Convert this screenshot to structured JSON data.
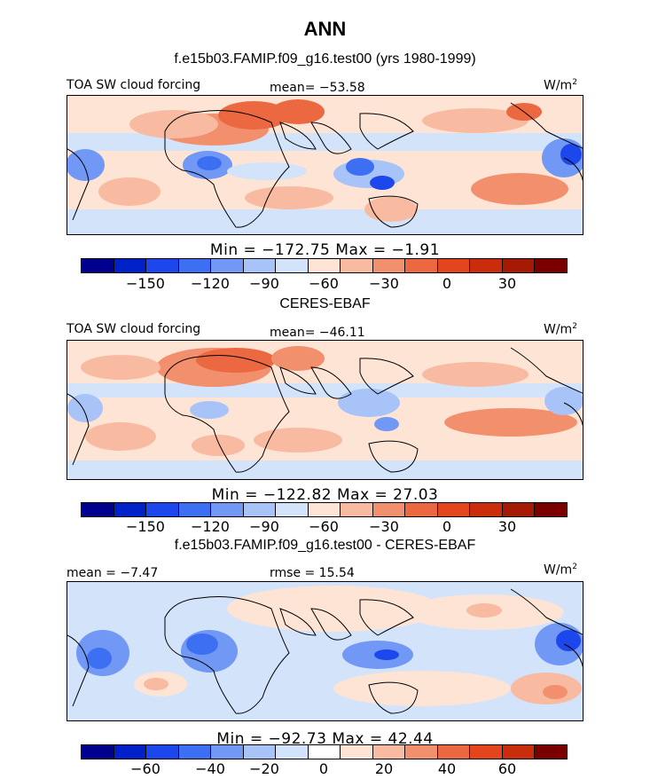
{
  "title": "ANN",
  "colors": {
    "scale": [
      "#00008f",
      "#0021c7",
      "#1c47ec",
      "#3d6ff2",
      "#7198f5",
      "#a8c3f7",
      "#d3e3fa",
      "#fde4d5",
      "#f8baa0",
      "#f2906d",
      "#ec6840",
      "#e3461d",
      "#c92d0b",
      "#a51a05",
      "#7a0000"
    ],
    "coast": "#000000"
  },
  "panels": [
    {
      "title": "f.e15b03.FAMIP.f09_g16.test00 (yrs 1980-1999)",
      "left_label": "TOA SW cloud forcing",
      "center_label": "mean= −53.58",
      "units": "W/m",
      "units_exp": "2",
      "minmax": "Min = −172.75 Max =  −1.91",
      "ticks": [
        "−150",
        "−120",
        "−90",
        "−60",
        "−30",
        "0",
        "30"
      ]
    },
    {
      "title": "CERES-EBAF",
      "left_label": "TOA SW cloud forcing",
      "center_label": "mean= −46.11",
      "units": "W/m",
      "units_exp": "2",
      "minmax": "Min = −122.82 Max =  27.03",
      "ticks": [
        "−150",
        "−120",
        "−90",
        "−60",
        "−30",
        "0",
        "30"
      ]
    },
    {
      "title": "f.e15b03.FAMIP.f09_g16.test00 - CERES-EBAF",
      "left_label": "mean =  −7.47",
      "center_label": "rmse =  15.54",
      "units": "W/m",
      "units_exp": "2",
      "minmax": "Min = −92.73 Max =  42.44",
      "ticks": [
        "−60",
        "−40",
        "−20",
        "0",
        "20",
        "40",
        "60"
      ]
    }
  ]
}
